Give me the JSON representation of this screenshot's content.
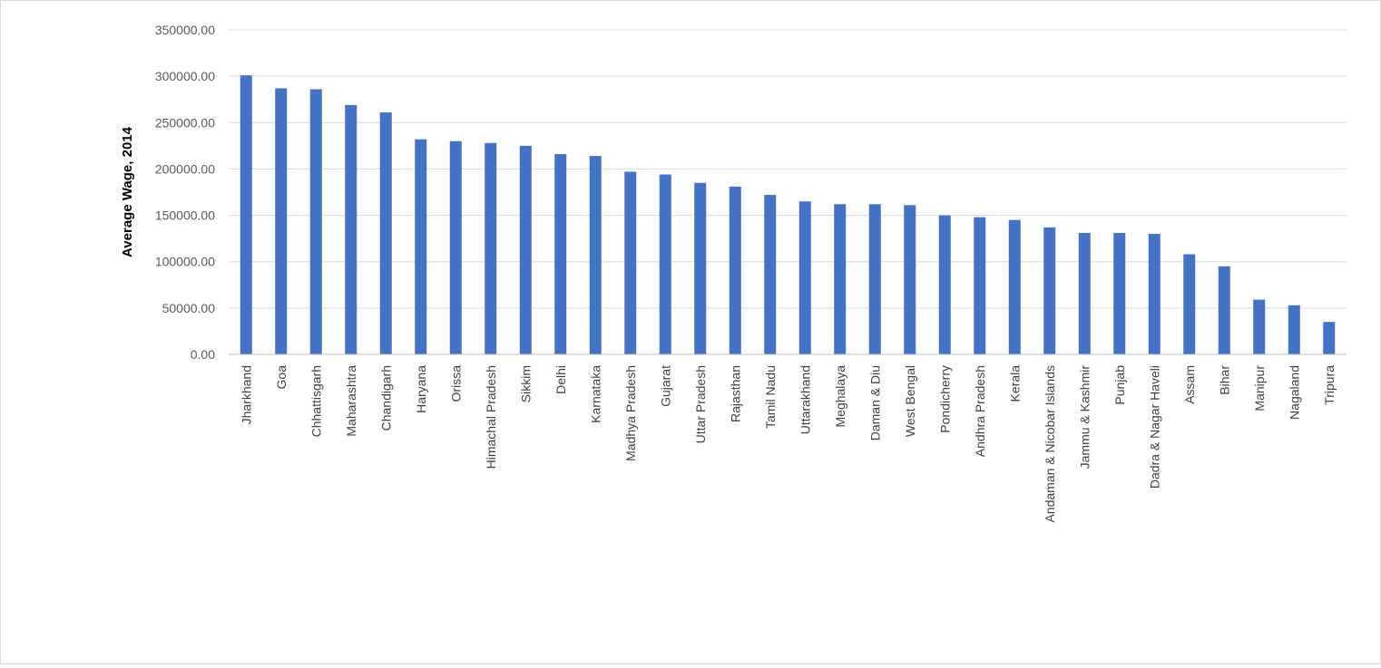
{
  "chart_data": {
    "type": "bar",
    "title": "",
    "xlabel": "",
    "ylabel": "Average Wage, 2014",
    "ylim": [
      0,
      350000
    ],
    "yticks": [
      "0.00",
      "50000.00",
      "100000.00",
      "150000.00",
      "200000.00",
      "250000.00",
      "300000.00",
      "350000.00"
    ],
    "grid": true,
    "legend": "none",
    "bar_color": "#4472C4",
    "categories": [
      "Jharkhand",
      "Goa",
      "Chhattisgarh",
      "Maharashtra",
      "Chandigarh",
      "Haryana",
      "Orissa",
      "Himachal Pradesh",
      "Sikkim",
      "Delhi",
      "Karnataka",
      "Madhya Pradesh",
      "Gujarat",
      "Uttar Pradesh",
      "Rajasthan",
      "Tamil Nadu",
      "Uttarakhand",
      "Meghalaya",
      "Daman & Diu",
      "West Bengal",
      "Pondicherry",
      "Andhra Pradesh",
      "Kerala",
      "Andaman & Nicobar Islands",
      "Jammu & Kashmir",
      "Punjab",
      "Dadra & Nagar Haveli",
      "Assam",
      "Bihar",
      "Manipur",
      "Nagaland",
      "Tripura"
    ],
    "values": [
      301000,
      287000,
      286000,
      269000,
      261000,
      232000,
      230000,
      228000,
      225000,
      216000,
      214000,
      197000,
      194000,
      185000,
      181000,
      172000,
      165000,
      162000,
      162000,
      161000,
      150000,
      148000,
      145000,
      137000,
      131000,
      131000,
      130000,
      108000,
      95000,
      59000,
      53000,
      35000
    ]
  }
}
